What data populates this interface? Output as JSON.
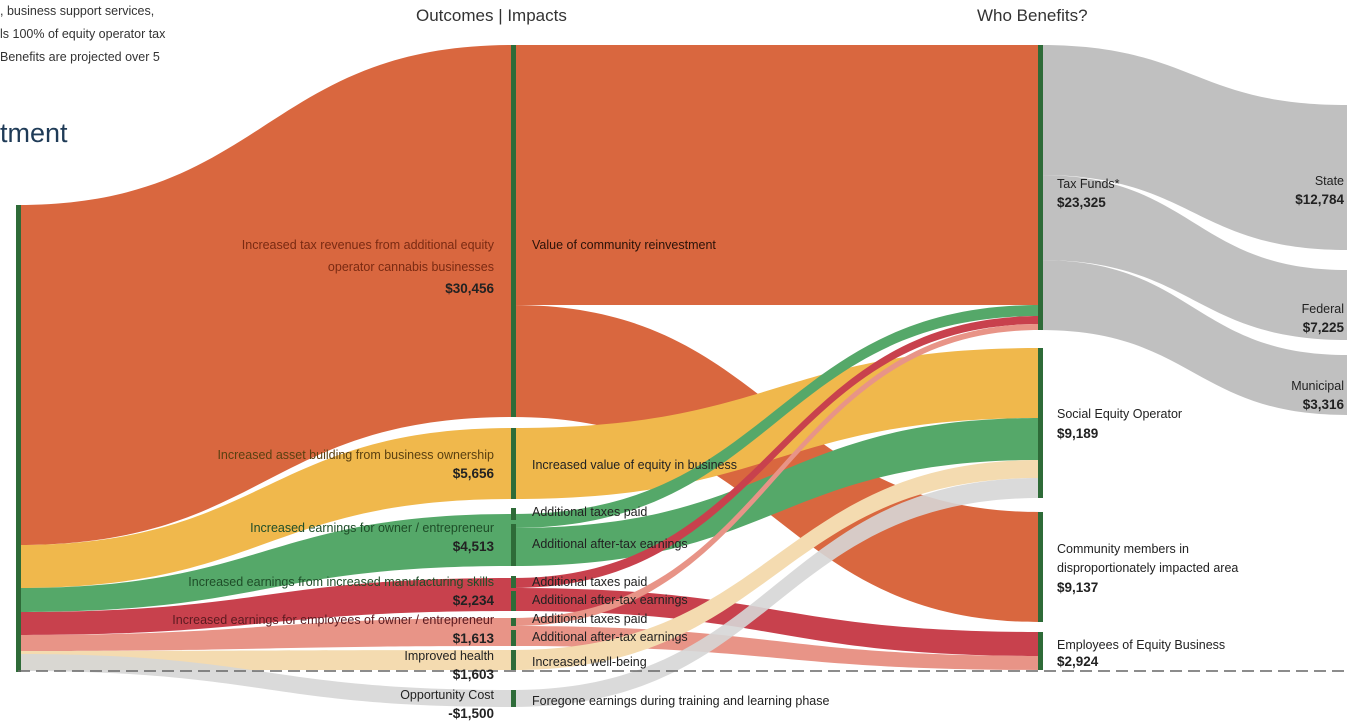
{
  "intro_lines": [
    ", business support services,",
    "ls 100% of equity operator tax",
    "Benefits are projected over 5"
  ],
  "page_heading": "tment",
  "headers": {
    "outcomes": "Outcomes | Impacts",
    "who_benefits": "Who Benefits?"
  },
  "colors": {
    "orange": "#d9673f",
    "yellow": "#f0b84c",
    "green": "#55a869",
    "red": "#c8414d",
    "salmon": "#e89487",
    "cream": "#f4dbb0",
    "lightgray": "#d6d6d6",
    "gray": "#bdbdbd",
    "darkgreen": "#2e6b38"
  },
  "chart_data": {
    "type": "sankey",
    "sources": [
      {
        "label": "Increased tax revenues from additional equity operator cannabis businesses",
        "value": "$30,456"
      },
      {
        "label": "Increased asset building from business ownership",
        "value": "$5,656"
      },
      {
        "label": "Increased earnings for owner / entrepreneur",
        "value": "$4,513"
      },
      {
        "label": "Increased earnings from increased manufacturing skills",
        "value": "$2,234"
      },
      {
        "label": "Increased earnings for employees of owner / entrepreneur",
        "value": "$1,613"
      },
      {
        "label": "Improved health",
        "value": "$1,603"
      },
      {
        "label": "Opportunity Cost",
        "value": "-$1,500"
      }
    ],
    "impacts": [
      "Value of community reinvestment",
      "Increased value of equity in business",
      "Additional taxes paid",
      "Additional after-tax earnings",
      "Additional taxes paid",
      "Additional after-tax earnings",
      "Additional taxes paid",
      "Additional after-tax earnings",
      "Increased well-being",
      "Foregone earnings during training and learning phase"
    ],
    "beneficiaries": [
      {
        "label": "Tax Funds*",
        "value": "$23,325"
      },
      {
        "label": "Social Equity Operator",
        "value": "$9,189"
      },
      {
        "label": "Community members in disproportionately impacted area",
        "value": "$9,137"
      },
      {
        "label": "Employees of Equity Business",
        "value": "$2,924"
      }
    ],
    "tax_split": [
      {
        "label": "State",
        "value": "$12,784"
      },
      {
        "label": "Federal",
        "value": "$7,225"
      },
      {
        "label": "Municipal",
        "value": "$3,316"
      }
    ],
    "flows": [
      {
        "from": "Increased tax revenues from additional equity operator cannabis businesses",
        "to": "Value of community reinvestment",
        "color": "orange"
      },
      {
        "from": "Value of community reinvestment",
        "to": "Tax Funds*",
        "color": "orange"
      },
      {
        "from": "Value of community reinvestment",
        "to": "Community members in disproportionately impacted area",
        "color": "orange"
      },
      {
        "from": "Increased asset building from business ownership",
        "to": "Increased value of equity in business",
        "color": "yellow"
      },
      {
        "from": "Increased value of equity in business",
        "to": "Social Equity Operator",
        "color": "yellow"
      },
      {
        "from": "Increased earnings for owner / entrepreneur",
        "to": "Additional taxes paid",
        "color": "green"
      },
      {
        "from": "Increased earnings for owner / entrepreneur",
        "to": "Additional after-tax earnings",
        "color": "green"
      },
      {
        "from": "Additional taxes paid",
        "to": "Tax Funds*",
        "color": "green"
      },
      {
        "from": "Additional after-tax earnings",
        "to": "Social Equity Operator",
        "color": "green"
      },
      {
        "from": "Increased earnings from increased manufacturing skills",
        "to": "Additional taxes paid",
        "color": "red"
      },
      {
        "from": "Increased earnings from increased manufacturing skills",
        "to": "Additional after-tax earnings",
        "color": "red"
      },
      {
        "from": "Additional taxes paid",
        "to": "Tax Funds*",
        "color": "red"
      },
      {
        "from": "Additional after-tax earnings",
        "to": "Employees of Equity Business",
        "color": "red"
      },
      {
        "from": "Increased earnings for employees of owner / entrepreneur",
        "to": "Additional taxes paid",
        "color": "salmon"
      },
      {
        "from": "Increased earnings for employees of owner / entrepreneur",
        "to": "Additional after-tax earnings",
        "color": "salmon"
      },
      {
        "from": "Additional taxes paid",
        "to": "Tax Funds*",
        "color": "salmon"
      },
      {
        "from": "Additional after-tax earnings",
        "to": "Employees of Equity Business",
        "color": "salmon"
      },
      {
        "from": "Improved health",
        "to": "Increased well-being",
        "color": "cream"
      },
      {
        "from": "Increased well-being",
        "to": "Social Equity Operator",
        "color": "cream"
      },
      {
        "from": "Opportunity Cost",
        "to": "Foregone earnings during training and learning phase",
        "color": "lightgray"
      },
      {
        "from": "Foregone earnings during training and learning phase",
        "to": "Social Equity Operator",
        "color": "lightgray"
      },
      {
        "from": "Tax Funds*",
        "to": "State",
        "color": "gray"
      },
      {
        "from": "Tax Funds*",
        "to": "Federal",
        "color": "gray"
      },
      {
        "from": "Tax Funds*",
        "to": "Municipal",
        "color": "gray"
      }
    ]
  }
}
